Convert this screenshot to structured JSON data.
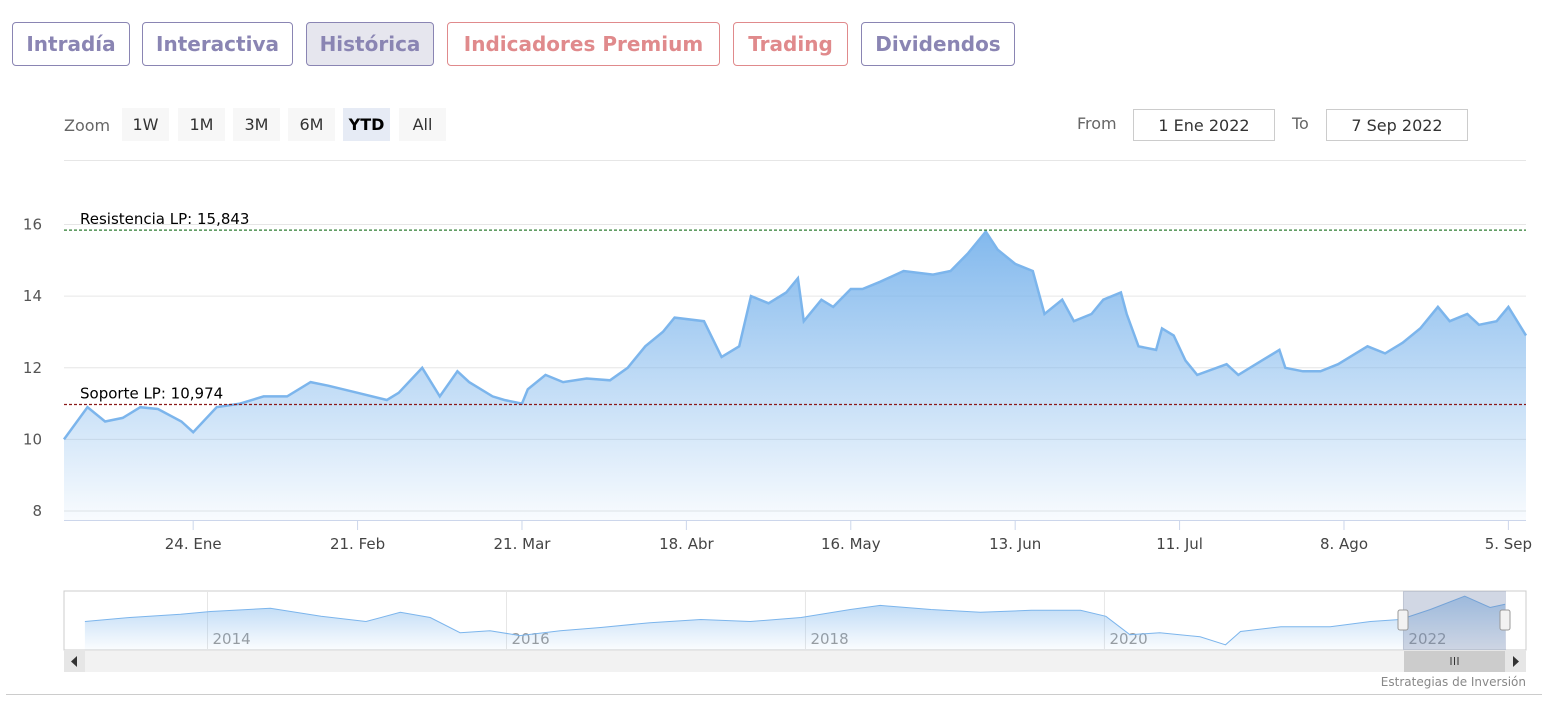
{
  "tabs": [
    {
      "label": "Intradía",
      "color": "#8a85b3"
    },
    {
      "label": "Interactiva",
      "color": "#8a85b3"
    },
    {
      "label": "Histórica",
      "color": "#8a85b3"
    },
    {
      "label": "Indicadores Premium",
      "color": "#e08a8c"
    },
    {
      "label": "Trading",
      "color": "#e08a8c"
    },
    {
      "label": "Dividendos",
      "color": "#8a85b3"
    }
  ],
  "range_selector": {
    "zoom_label": "Zoom",
    "buttons": [
      "1W",
      "1M",
      "3M",
      "6M",
      "YTD",
      "All"
    ],
    "from_label": "From",
    "from": "1 Ene 2022",
    "to_label": "To",
    "to": "7 Sep 2022"
  },
  "credit": "Estrategias de Inversión",
  "chart_data": [
    {
      "type": "area",
      "color": "#7cb5ec",
      "grid": true,
      "x": [
        2,
        6,
        9,
        12,
        15,
        18,
        22,
        24,
        28,
        32,
        36,
        40,
        44,
        47,
        52,
        57,
        59,
        63,
        66,
        69,
        71,
        75,
        77,
        80,
        81,
        84,
        87,
        91,
        95,
        98,
        101,
        104,
        106,
        111,
        114,
        117,
        119,
        122,
        125,
        127,
        128,
        131,
        133,
        136,
        138,
        141,
        145,
        150,
        153,
        156,
        159,
        161,
        164,
        167,
        169,
        172,
        174,
        177,
        179,
        182,
        183,
        185,
        188,
        189,
        191,
        193,
        195,
        200,
        202,
        206,
        209,
        210,
        213,
        216,
        219,
        222,
        224,
        227,
        230,
        233,
        236,
        238,
        241,
        243,
        246,
        248,
        251
      ],
      "values": [
        10.0,
        10.9,
        10.5,
        10.6,
        10.9,
        10.85,
        10.5,
        10.2,
        10.9,
        11.0,
        11.2,
        11.2,
        11.6,
        11.5,
        11.3,
        11.1,
        11.3,
        12.0,
        11.2,
        11.9,
        11.6,
        11.2,
        11.1,
        11.0,
        11.4,
        11.8,
        11.6,
        11.7,
        11.65,
        12.0,
        12.6,
        13.0,
        13.4,
        13.3,
        12.3,
        12.6,
        14.0,
        13.8,
        14.1,
        14.5,
        13.3,
        13.9,
        13.7,
        14.2,
        14.2,
        14.4,
        14.7,
        14.6,
        14.7,
        15.2,
        15.8,
        15.3,
        14.9,
        14.7,
        13.5,
        13.9,
        13.3,
        13.5,
        13.9,
        14.1,
        13.5,
        12.6,
        12.5,
        13.1,
        12.9,
        12.2,
        11.8,
        12.1,
        11.8,
        12.2,
        12.5,
        12.0,
        11.9,
        11.9,
        12.1,
        12.4,
        12.6,
        12.4,
        12.7,
        13.1,
        13.7,
        13.3,
        13.5,
        13.2,
        13.3,
        13.7,
        12.9
      ],
      "xlim": [
        2,
        251
      ],
      "xticks": [
        {
          "value": 24,
          "label": "24. Ene"
        },
        {
          "value": 52,
          "label": "21. Feb"
        },
        {
          "value": 80,
          "label": "21. Mar"
        },
        {
          "value": 108,
          "label": "18. Abr"
        },
        {
          "value": 136,
          "label": "16. May"
        },
        {
          "value": 164,
          "label": "13. Jun"
        },
        {
          "value": 192,
          "label": "11. Jul"
        },
        {
          "value": 220,
          "label": "8. Ago"
        },
        {
          "value": 248,
          "label": "5. Sep"
        }
      ],
      "ylim": [
        7.75,
        17.8
      ],
      "yticks": [
        8,
        10,
        12,
        14,
        16
      ],
      "plot_lines": [
        {
          "value": 15.843,
          "label": "Resistencia LP: 15,843",
          "color": "#2e7d32"
        },
        {
          "value": 10.974,
          "label": "Soporte LP: 10,974",
          "color": "#8b1a1a"
        }
      ]
    },
    {
      "type": "area",
      "color": "#7cb5ec",
      "grid": true,
      "x": [
        2013.18,
        2013.48,
        2013.82,
        2014.02,
        2014.42,
        2014.76,
        2015.06,
        2015.29,
        2015.49,
        2015.69,
        2015.89,
        2016.09,
        2016.36,
        2016.63,
        2016.96,
        2017.3,
        2017.63,
        2017.97,
        2018.3,
        2018.5,
        2018.84,
        2019.17,
        2019.51,
        2019.84,
        2020.01,
        2020.17,
        2020.37,
        2020.64,
        2020.81,
        2020.91,
        2021.18,
        2021.51,
        2021.78,
        2021.98,
        2022.18,
        2022.41,
        2022.58,
        2022.68
      ],
      "values": [
        9.5,
        10.5,
        11.3,
        12.0,
        12.8,
        10.8,
        9.5,
        11.8,
        10.5,
        6.7,
        7.2,
        6.0,
        7.2,
        8.0,
        9.2,
        10.0,
        9.5,
        10.5,
        12.5,
        13.5,
        12.5,
        11.8,
        12.3,
        12.3,
        10.8,
        6.2,
        6.7,
        5.7,
        3.7,
        7.0,
        8.2,
        8.2,
        9.5,
        10.0,
        12.5,
        15.8,
        13.0,
        13.8
      ],
      "xlim": [
        2013.04,
        2022.82
      ],
      "xticks": [
        2014,
        2016,
        2018,
        2020,
        2022
      ],
      "ylim": [
        2.4,
        17.1
      ]
    }
  ]
}
